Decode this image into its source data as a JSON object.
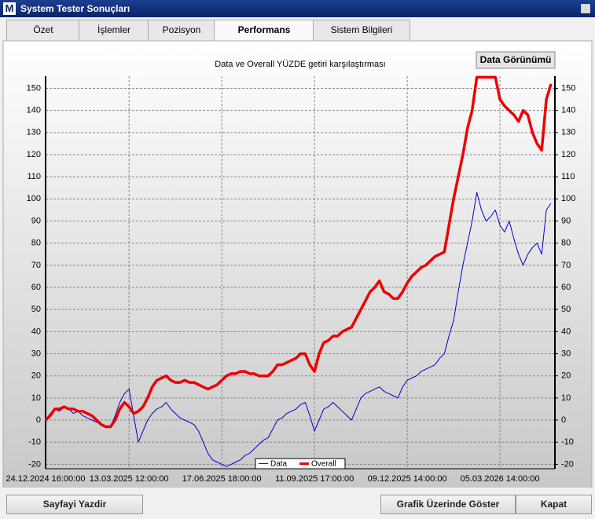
{
  "window": {
    "title": "System Tester Sonuçları",
    "icon": "M"
  },
  "tabs": [
    "Özet",
    "İşlemler",
    "Pozisyon",
    "Performans",
    "Sistem Bilgileri"
  ],
  "data_button": "Data Görünümü",
  "buttons": {
    "print": "Sayfayi Yazdir",
    "show": "Grafik Üzerinde Göster",
    "close": "Kapat"
  },
  "chart_data": {
    "type": "line",
    "title": "Data ve Overall YÜZDE getiri karşılaştırması",
    "categories": [
      "24.12.2024 16:00:00",
      null,
      null,
      null,
      null,
      null,
      null,
      null,
      null,
      null,
      null,
      null,
      null,
      null,
      null,
      null,
      null,
      null,
      "13.03.2025 12:00:00",
      null,
      null,
      null,
      null,
      null,
      null,
      null,
      null,
      null,
      null,
      null,
      null,
      null,
      null,
      null,
      null,
      null,
      null,
      null,
      "17.06.2025 18:00:00",
      null,
      null,
      null,
      null,
      null,
      null,
      null,
      null,
      null,
      null,
      null,
      null,
      null,
      null,
      null,
      null,
      null,
      null,
      null,
      "11.09.2025 17:00:00",
      null,
      null,
      null,
      null,
      null,
      null,
      null,
      null,
      null,
      null,
      null,
      null,
      null,
      null,
      null,
      null,
      null,
      null,
      null,
      "09.12.2025 14:00:00",
      null,
      null,
      null,
      null,
      null,
      null,
      null,
      null,
      null,
      null,
      null,
      null,
      null,
      null,
      null,
      null,
      null,
      null,
      null,
      "05.03.2026 14:00:00",
      null,
      null,
      null,
      null,
      null,
      null,
      null,
      null,
      null,
      null,
      null
    ],
    "series": [
      {
        "name": "Data",
        "color": "#0000cc",
        "values": [
          0,
          3,
          5,
          4,
          6,
          5,
          3,
          4,
          2,
          1,
          0,
          -1,
          -2,
          -3,
          -3,
          2,
          8,
          12,
          14,
          2,
          -10,
          -5,
          0,
          3,
          5,
          6,
          8,
          5,
          3,
          1,
          0,
          -1,
          -2,
          -5,
          -10,
          -15,
          -18,
          -19,
          -20,
          -21,
          -20,
          -19,
          -18,
          -16,
          -15,
          -13,
          -11,
          -9,
          -8,
          -4,
          0,
          1,
          3,
          4,
          5,
          7,
          8,
          2,
          -5,
          0,
          5,
          6,
          8,
          6,
          4,
          2,
          0,
          5,
          10,
          12,
          13,
          14,
          15,
          13,
          12,
          11,
          10,
          15,
          18,
          19,
          20,
          22,
          23,
          24,
          25,
          28,
          30,
          38,
          45,
          58,
          70,
          80,
          90,
          103,
          95,
          90,
          92,
          95,
          88,
          85,
          90,
          82,
          75,
          70,
          75,
          78,
          80,
          75,
          95,
          98
        ]
      },
      {
        "name": "Overall",
        "color": "#ee0000",
        "values": [
          0,
          2,
          5,
          5,
          6,
          5,
          5,
          4,
          4,
          3,
          2,
          0,
          -2,
          -3,
          -3,
          0,
          5,
          8,
          6,
          3,
          4,
          6,
          10,
          15,
          18,
          19,
          20,
          18,
          17,
          17,
          18,
          17,
          17,
          16,
          15,
          14,
          15,
          16,
          18,
          20,
          21,
          21,
          22,
          22,
          21,
          21,
          20,
          20,
          20,
          22,
          25,
          25,
          26,
          27,
          28,
          30,
          30,
          25,
          22,
          30,
          35,
          36,
          38,
          38,
          40,
          41,
          42,
          46,
          50,
          54,
          58,
          60,
          63,
          58,
          57,
          55,
          55,
          58,
          62,
          65,
          67,
          69,
          70,
          72,
          74,
          75,
          76,
          88,
          100,
          110,
          120,
          132,
          140,
          155,
          155,
          155,
          155,
          155,
          145,
          142,
          140,
          138,
          135,
          140,
          138,
          130,
          125,
          122,
          145,
          152
        ]
      }
    ],
    "ylim": [
      -22,
      155.5
    ],
    "yticks": [
      -20,
      -10,
      0,
      10,
      20,
      30,
      40,
      50,
      60,
      70,
      80,
      90,
      100,
      110,
      120,
      130,
      140,
      150
    ],
    "y2lim": [
      -22,
      155.5
    ],
    "y2ticks": [
      -20,
      -10,
      0,
      10,
      20,
      30,
      40,
      50,
      60,
      70,
      80,
      90,
      100,
      110,
      120,
      130,
      140,
      150
    ],
    "grid": true,
    "legend": "bottom"
  }
}
